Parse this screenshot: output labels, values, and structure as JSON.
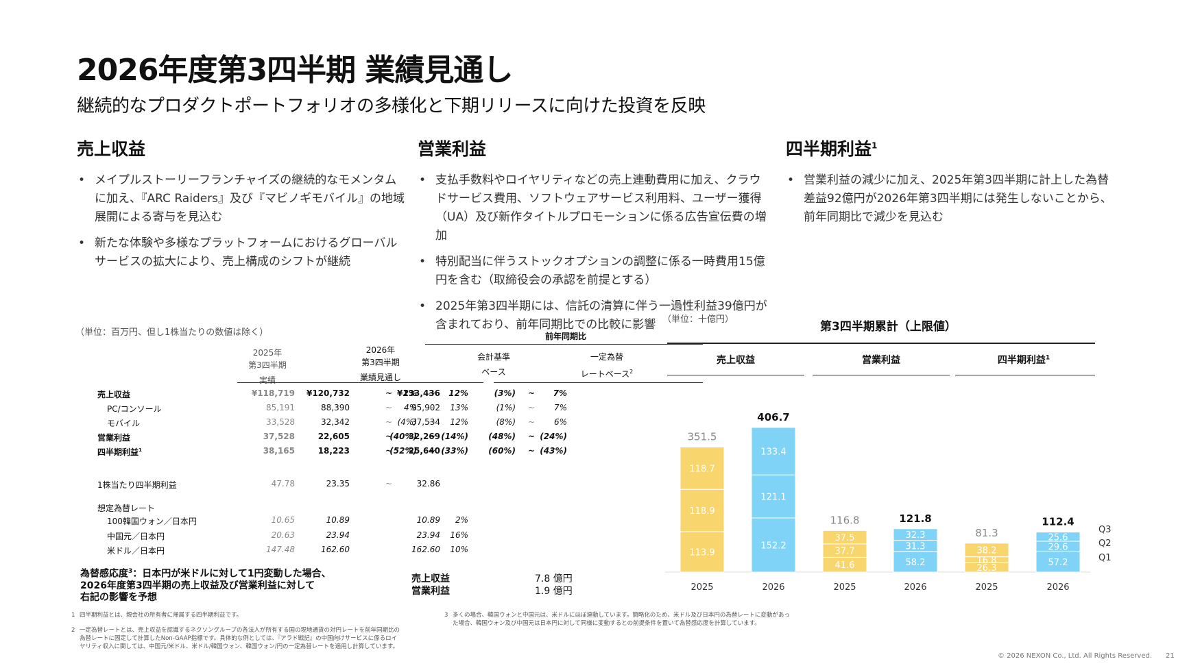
{
  "header": {
    "title": "2026年度第3四半期 業績見通し",
    "subtitle": "継続的なプロダクトポートフォリオの多様化と下期リリースに向けた投資を反映"
  },
  "columns": [
    {
      "title": "売上収益",
      "sup": "",
      "bullets": [
        "メイプルストーリーフランチャイズの継続的なモメンタムに加え、『ARC Raiders』及び『マビノギモバイル』の地域展開による寄与を見込む",
        "新たな体験や多様なプラットフォームにおけるグローバルサービスの拡大により、売上構成のシフトが継続"
      ]
    },
    {
      "title": "営業利益",
      "sup": "",
      "bullets": [
        "支払手数料やロイヤリティなどの売上連動費用に加え、クラウドサービス費用、ソフトウェアサービス利用料、ユーザー獲得（UA）及び新作タイトルプロモーションに係る広告宣伝費の増加",
        "特別配当に伴うストックオプションの調整に係る一時費用15億円を含む（取締役会の承認を前提とする）",
        "2025年第3四半期には、信託の清算に伴う一過性利益39億円が含まれており、前年同期比での比較に影響"
      ]
    },
    {
      "title": "四半期利益",
      "sup": "1",
      "bullets": [
        "営業利益の減少に加え、2025年第3四半期に計上した為替差益92億円が2026年第3四半期には発生しないことから、前年同期比で減少を見込む"
      ]
    }
  ],
  "table": {
    "unit_note": "（単位：百万円、但し1株当たりの数値は除く）",
    "yoy_header": "前年同期比",
    "col_2025": [
      "2025年",
      "第3四半期",
      "実績"
    ],
    "col_2026": [
      "2026年",
      "第3四半期",
      "業績見通し"
    ],
    "col_acct": [
      "会計基準",
      "ベース"
    ],
    "col_cc": [
      "一定為替",
      "レートベース"
    ],
    "col_cc_sup": "2",
    "tilde": "~",
    "rows": [
      {
        "label": "売上収益",
        "sup": "",
        "a": "¥118,719",
        "lo": "¥120,732",
        "hi": "¥133,436",
        "y1": "2%",
        "y2": "12%",
        "c1": "(3%)",
        "c2": "7%",
        "style": "bold"
      },
      {
        "label": "PC/コンソール",
        "sup": "",
        "a": "85,191",
        "lo": "88,390",
        "hi": "95,902",
        "y1": "4%",
        "y2": "13%",
        "c1": "(1%)",
        "c2": "7%",
        "style": "sub"
      },
      {
        "label": "モバイル",
        "sup": "",
        "a": "33,528",
        "lo": "32,342",
        "hi": "37,534",
        "y1": "(4%)",
        "y2": "12%",
        "c1": "(8%)",
        "c2": "6%",
        "style": "sub"
      },
      {
        "label": "営業利益",
        "sup": "",
        "a": "37,528",
        "lo": "22,605",
        "hi": "32,269",
        "y1": "(40%)",
        "y2": "(14%)",
        "c1": "(48%)",
        "c2": "(24%)",
        "style": "bold"
      },
      {
        "label": "四半期利益",
        "sup": "1",
        "a": "38,165",
        "lo": "18,223",
        "hi": "25,640",
        "y1": "(52%)",
        "y2": "(33%)",
        "c1": "(60%)",
        "c2": "(43%)",
        "style": "bold"
      }
    ],
    "eps": {
      "label": "1株当たり四半期利益",
      "a": "47.78",
      "lo": "23.35",
      "hi": "32.86"
    },
    "fx_title": "想定為替レート",
    "fx_rows": [
      {
        "label": "100韓国ウォン／日本円",
        "a": "10.65",
        "lo": "10.89",
        "hi": "10.89",
        "y": "2%"
      },
      {
        "label": "中国元／日本円",
        "a": "20.63",
        "lo": "23.94",
        "hi": "23.94",
        "y": "16%"
      },
      {
        "label": "米ドル／日本円",
        "a": "147.48",
        "lo": "162.60",
        "hi": "162.60",
        "y": "10%"
      }
    ]
  },
  "sensitivity": {
    "lines": [
      "為替感応度",
      "：日本円が米ドルに対して1円変動した場合、",
      "2026年度第3四半期の売上収益及び営業利益に対して",
      "右記の影響を予想"
    ],
    "sup": "3",
    "items": [
      {
        "label": "売上収益",
        "value": "7.8 億円"
      },
      {
        "label": "営業利益",
        "value": "1.9 億円"
      }
    ]
  },
  "footnotes": [
    {
      "n": "1",
      "text": "四半期利益とは、親会社の所有者に帰属する四半期利益です。"
    },
    {
      "n": "2",
      "text": "一定為替レートとは、売上収益を認識するネクソングループの各法人が所有する国の現地通貨の対円レートを前年同期比の為替レートに固定して計算したNon-GAAP指標です。具体的な例としては、『アラド戦記』の中国向けサービスに係るロイヤリティ収入に関しては、中国元/米ドル、米ドル/韓国ウォン、韓国ウォン/円の一定為替レートを適用し計算しています。"
    },
    {
      "n": "3",
      "text": "多くの場合、韓国ウォンと中国元は、米ドルにほぼ連動しています。簡略化のため、米ドル及び日本円の為替レートに変動があった場合、韓国ウォン及び中国元は日本円に対して同様に変動するとの前提条件を置いて為替感応度を計算しています。"
    }
  ],
  "footer": {
    "copyright": "© 2026 NEXON Co., Ltd. All Rights Reserved.",
    "page": "21"
  },
  "chart_data": {
    "type": "bar",
    "title": "第3四半期累計（上限値）",
    "unit": "（単位：十億円）",
    "groups": [
      {
        "name": "売上収益",
        "sup": "",
        "categories": [
          "2025",
          "2026"
        ],
        "Q1": [
          113.9,
          152.2
        ],
        "Q2": [
          118.9,
          121.1
        ],
        "Q3": [
          118.7,
          133.4
        ],
        "totals": [
          351.5,
          406.7
        ]
      },
      {
        "name": "営業利益",
        "sup": "",
        "categories": [
          "2025",
          "2026"
        ],
        "Q1": [
          41.6,
          58.2
        ],
        "Q2": [
          37.7,
          31.3
        ],
        "Q3": [
          37.5,
          32.3
        ],
        "totals": [
          116.8,
          121.8
        ]
      },
      {
        "name": "四半期利益",
        "sup": "1",
        "categories": [
          "2025",
          "2026"
        ],
        "Q1": [
          26.3,
          57.2
        ],
        "Q2": [
          16.8,
          29.6
        ],
        "Q3": [
          38.2,
          25.6
        ],
        "totals": [
          81.3,
          112.4
        ]
      }
    ],
    "series": [
      {
        "name": "Q1"
      },
      {
        "name": "Q2"
      },
      {
        "name": "Q3"
      }
    ],
    "colors": {
      "2025": "#f9d56e",
      "2026": "#7fd3f7",
      "total_2025": "#888888",
      "total_2026": "#111111"
    },
    "legend": "right"
  }
}
